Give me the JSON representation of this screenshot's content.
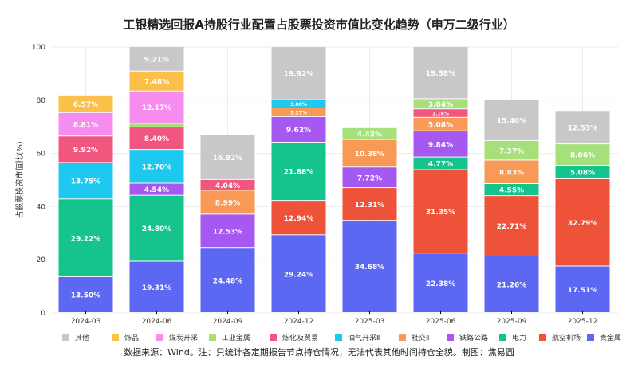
{
  "chart_data": {
    "type": "bar",
    "stacked": true,
    "title": "工银精选回报A持股行业配置占股票投资市值比变化趋势（申万二级行业）",
    "xlabel": "",
    "ylabel": "占股票投资市值比(%)",
    "ylim": [
      0,
      100
    ],
    "yticks": [
      0,
      20,
      40,
      60,
      80,
      100
    ],
    "grid": true,
    "legend_position": "bottom",
    "categories": [
      "2024-03",
      "2024-06",
      "2024-09",
      "2024-12",
      "2025-03",
      "2025-06",
      "2025-09",
      "2025-12"
    ],
    "series": [
      {
        "name": "贵金属",
        "color": "#5c67f2",
        "values": [
          13.5,
          19.31,
          24.48,
          29.24,
          34.68,
          22.38,
          21.26,
          17.51
        ]
      },
      {
        "name": "航空机场",
        "color": "#ee5238",
        "values": [
          null,
          null,
          null,
          12.94,
          12.31,
          31.35,
          22.71,
          32.79
        ]
      },
      {
        "name": "电力",
        "color": "#14c48c",
        "values": [
          29.22,
          24.8,
          null,
          21.88,
          null,
          4.77,
          4.55,
          5.08
        ]
      },
      {
        "name": "铁路公路",
        "color": "#a659f0",
        "values": [
          null,
          4.54,
          12.53,
          9.62,
          7.72,
          9.84,
          null,
          null
        ]
      },
      {
        "name": "社交Ⅱ",
        "color": "#f89a55",
        "values": [
          null,
          null,
          8.99,
          3.27,
          10.38,
          5.08,
          8.83,
          null
        ]
      },
      {
        "name": "油气开采Ⅱ",
        "color": "#1fc8ee",
        "values": [
          13.75,
          12.7,
          null,
          3.08,
          null,
          null,
          null,
          null
        ]
      },
      {
        "name": "炼化及贸易",
        "color": "#f0567e",
        "values": [
          9.92,
          8.4,
          4.04,
          null,
          null,
          3.16,
          null,
          null
        ]
      },
      {
        "name": "工业金属",
        "color": "#a6e07a",
        "values": [
          null,
          1.39,
          null,
          null,
          4.43,
          3.84,
          7.37,
          8.06
        ]
      },
      {
        "name": "煤炭开采",
        "color": "#f78cf0",
        "values": [
          8.81,
          12.17,
          null,
          null,
          null,
          null,
          null,
          null
        ]
      },
      {
        "name": "饰品",
        "color": "#fbc04a",
        "values": [
          6.57,
          7.48,
          null,
          null,
          null,
          null,
          null,
          null
        ]
      },
      {
        "name": "其他",
        "color": "#c8c8c8",
        "values": [
          null,
          9.21,
          16.92,
          19.92,
          null,
          19.58,
          15.4,
          12.53
        ]
      }
    ],
    "hidden_labels": {
      "工业金属": [
        false,
        true,
        false,
        false,
        false,
        false,
        false,
        false
      ]
    },
    "legend_order": [
      "其他",
      "饰品",
      "煤炭开采",
      "工业金属",
      "炼化及贸易",
      "油气开采Ⅱ",
      "社交Ⅱ",
      "铁路公路",
      "电力",
      "航空机场",
      "贵金属"
    ]
  },
  "footer": {
    "source": "数据来源：Wind。注：只统计各定期报告节点持仓情况，无法代表其他时间持仓全貌。制图：焦易圆"
  }
}
